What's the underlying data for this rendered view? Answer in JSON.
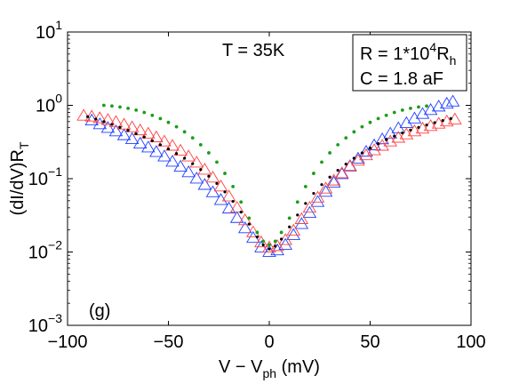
{
  "chart_data": {
    "type": "scatter",
    "title": "",
    "xlabel": {
      "main": "V − V",
      "sub": "ph",
      "tail": " (mV)"
    },
    "ylabel": {
      "main": "(dI/dV)R",
      "sub": "T"
    },
    "x_scale": "linear",
    "y_scale": "log",
    "xlim": [
      -100,
      100
    ],
    "ylim": [
      0.001,
      10
    ],
    "x_ticks": [
      -100,
      -50,
      0,
      50,
      100
    ],
    "x_tick_labels": [
      "−100",
      "−50",
      "0",
      "50",
      "100"
    ],
    "y_ticks": [
      0.001,
      0.01,
      0.1,
      1,
      10
    ],
    "y_tick_labels": [
      {
        "base": "10",
        "exp": "−3"
      },
      {
        "base": "10",
        "exp": "−2"
      },
      {
        "base": "10",
        "exp": "−1"
      },
      {
        "base": "10",
        "exp": "0"
      },
      {
        "base": "10",
        "exp": "1"
      }
    ],
    "annotations": {
      "temperature": "T = 35K",
      "panel": "(g)",
      "legend_box": {
        "line1": {
          "prefix": "R = 1*10",
          "exp": "4",
          "mid": "R",
          "sub": "h"
        },
        "line2": "C = 1.8 aF"
      }
    },
    "colors": {
      "blue_triangles": "#1f3fff",
      "red_triangles": "#ff4040",
      "green_fit": "#1a9e1a",
      "black_fit": "#000000"
    },
    "series": [
      {
        "style": "blue-triangles",
        "points": [
          [
            -88,
            0.62
          ],
          [
            -84,
            0.55
          ],
          [
            -80,
            0.49
          ],
          [
            -76,
            0.44
          ],
          [
            -72,
            0.39
          ],
          [
            -68,
            0.345
          ],
          [
            -64,
            0.3
          ],
          [
            -60,
            0.265
          ],
          [
            -56,
            0.23
          ],
          [
            -52,
            0.2
          ],
          [
            -48,
            0.17
          ],
          [
            -44,
            0.145
          ],
          [
            -40,
            0.122
          ],
          [
            -36,
            0.1
          ],
          [
            -32,
            0.082
          ],
          [
            -28,
            0.065
          ],
          [
            -24,
            0.051
          ],
          [
            -20,
            0.039
          ],
          [
            -16,
            0.029
          ],
          [
            -12,
            0.021
          ],
          [
            -8,
            0.0155
          ],
          [
            -4,
            0.0115
          ],
          [
            0,
            0.01
          ],
          [
            4,
            0.0105
          ],
          [
            8,
            0.0125
          ],
          [
            12,
            0.017
          ],
          [
            16,
            0.024
          ],
          [
            20,
            0.034
          ],
          [
            24,
            0.048
          ],
          [
            28,
            0.066
          ],
          [
            32,
            0.088
          ],
          [
            36,
            0.115
          ],
          [
            40,
            0.148
          ],
          [
            44,
            0.187
          ],
          [
            48,
            0.232
          ],
          [
            52,
            0.284
          ],
          [
            56,
            0.343
          ],
          [
            60,
            0.41
          ],
          [
            64,
            0.485
          ],
          [
            68,
            0.57
          ],
          [
            72,
            0.66
          ],
          [
            76,
            0.76
          ],
          [
            80,
            0.86
          ],
          [
            84,
            0.96
          ],
          [
            88,
            1.05
          ],
          [
            91,
            1.12
          ]
        ]
      },
      {
        "style": "red-triangles",
        "points": [
          [
            -92,
            0.72
          ],
          [
            -88,
            0.7
          ],
          [
            -84,
            0.665
          ],
          [
            -80,
            0.63
          ],
          [
            -76,
            0.59
          ],
          [
            -72,
            0.545
          ],
          [
            -68,
            0.5
          ],
          [
            -64,
            0.455
          ],
          [
            -60,
            0.41
          ],
          [
            -56,
            0.365
          ],
          [
            -52,
            0.32
          ],
          [
            -48,
            0.28
          ],
          [
            -44,
            0.24
          ],
          [
            -40,
            0.2
          ],
          [
            -36,
            0.165
          ],
          [
            -32,
            0.132
          ],
          [
            -28,
            0.103
          ],
          [
            -24,
            0.078
          ],
          [
            -20,
            0.057
          ],
          [
            -16,
            0.04
          ],
          [
            -12,
            0.027
          ],
          [
            -8,
            0.0185
          ],
          [
            -4,
            0.0135
          ],
          [
            0,
            0.0115
          ],
          [
            4,
            0.012
          ],
          [
            8,
            0.0145
          ],
          [
            12,
            0.0195
          ],
          [
            16,
            0.028
          ],
          [
            20,
            0.04
          ],
          [
            24,
            0.055
          ],
          [
            28,
            0.073
          ],
          [
            32,
            0.094
          ],
          [
            36,
            0.118
          ],
          [
            40,
            0.145
          ],
          [
            44,
            0.175
          ],
          [
            48,
            0.208
          ],
          [
            52,
            0.243
          ],
          [
            56,
            0.28
          ],
          [
            60,
            0.32
          ],
          [
            64,
            0.36
          ],
          [
            68,
            0.4
          ],
          [
            72,
            0.44
          ],
          [
            76,
            0.48
          ],
          [
            80,
            0.52
          ],
          [
            84,
            0.56
          ],
          [
            88,
            0.6
          ],
          [
            92,
            0.64
          ]
        ]
      },
      {
        "style": "green-dots",
        "points": [
          [
            -82,
            1.0
          ],
          [
            -78,
            0.98
          ],
          [
            -74,
            0.95
          ],
          [
            -70,
            0.91
          ],
          [
            -66,
            0.86
          ],
          [
            -62,
            0.8
          ],
          [
            -58,
            0.73
          ],
          [
            -54,
            0.66
          ],
          [
            -50,
            0.585
          ],
          [
            -46,
            0.51
          ],
          [
            -42,
            0.435
          ],
          [
            -38,
            0.36
          ],
          [
            -34,
            0.29
          ],
          [
            -30,
            0.225
          ],
          [
            -26,
            0.168
          ],
          [
            -22,
            0.118
          ],
          [
            -18,
            0.078
          ],
          [
            -14,
            0.048
          ],
          [
            -10,
            0.029
          ],
          [
            -6,
            0.0185
          ],
          [
            -3,
            0.014
          ],
          [
            0,
            0.0125
          ],
          [
            3,
            0.014
          ],
          [
            6,
            0.0185
          ],
          [
            10,
            0.029
          ],
          [
            14,
            0.048
          ],
          [
            18,
            0.078
          ],
          [
            22,
            0.118
          ],
          [
            26,
            0.168
          ],
          [
            30,
            0.225
          ],
          [
            34,
            0.29
          ],
          [
            38,
            0.36
          ],
          [
            42,
            0.435
          ],
          [
            46,
            0.51
          ],
          [
            50,
            0.585
          ],
          [
            54,
            0.66
          ],
          [
            58,
            0.73
          ],
          [
            62,
            0.8
          ],
          [
            66,
            0.86
          ],
          [
            70,
            0.91
          ],
          [
            74,
            0.95
          ],
          [
            78,
            0.98
          ]
        ]
      },
      {
        "style": "black-dots",
        "points": [
          [
            -90,
            0.7
          ],
          [
            -86,
            0.65
          ],
          [
            -82,
            0.6
          ],
          [
            -78,
            0.55
          ],
          [
            -74,
            0.5
          ],
          [
            -70,
            0.455
          ],
          [
            -66,
            0.41
          ],
          [
            -62,
            0.37
          ],
          [
            -58,
            0.33
          ],
          [
            -54,
            0.29
          ],
          [
            -50,
            0.255
          ],
          [
            -46,
            0.22
          ],
          [
            -42,
            0.19
          ],
          [
            -38,
            0.16
          ],
          [
            -34,
            0.133
          ],
          [
            -30,
            0.108
          ],
          [
            -26,
            0.086
          ],
          [
            -22,
            0.066
          ],
          [
            -18,
            0.049
          ],
          [
            -14,
            0.035
          ],
          [
            -10,
            0.024
          ],
          [
            -6,
            0.016
          ],
          [
            -3,
            0.0125
          ],
          [
            0,
            0.011
          ],
          [
            3,
            0.012
          ],
          [
            6,
            0.015
          ],
          [
            10,
            0.022
          ],
          [
            14,
            0.032
          ],
          [
            18,
            0.046
          ],
          [
            22,
            0.063
          ],
          [
            26,
            0.083
          ],
          [
            30,
            0.105
          ],
          [
            34,
            0.13
          ],
          [
            38,
            0.158
          ],
          [
            42,
            0.19
          ],
          [
            46,
            0.225
          ],
          [
            50,
            0.262
          ],
          [
            54,
            0.3
          ],
          [
            58,
            0.34
          ],
          [
            62,
            0.38
          ],
          [
            66,
            0.42
          ],
          [
            70,
            0.46
          ],
          [
            74,
            0.5
          ],
          [
            78,
            0.54
          ],
          [
            82,
            0.58
          ],
          [
            86,
            0.62
          ],
          [
            90,
            0.66
          ]
        ]
      }
    ]
  }
}
